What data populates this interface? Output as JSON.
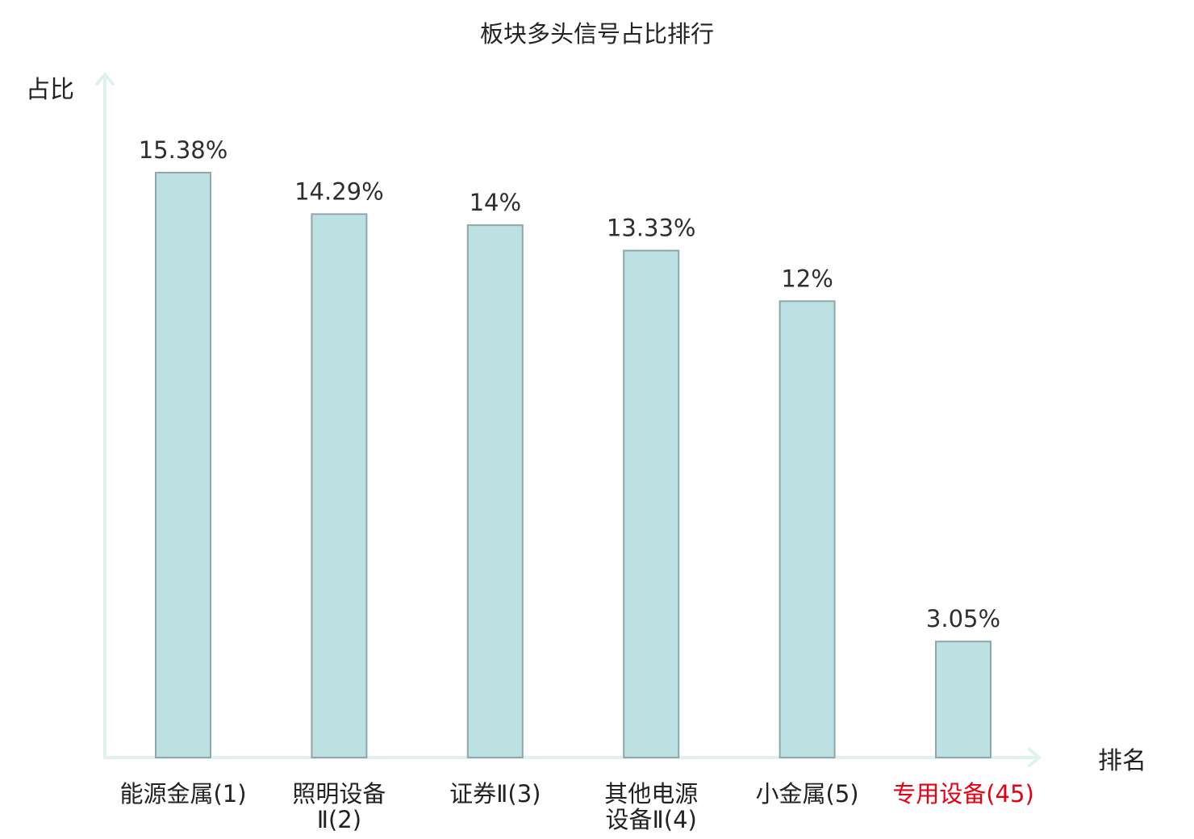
{
  "chart_data": {
    "type": "bar",
    "title": "板块多头信号占比排行",
    "xlabel": "排名",
    "ylabel": "占比",
    "categories": [
      "能源金属(1)",
      "照明设备Ⅱ(2)",
      "证券Ⅱ(3)",
      "其他电源设备Ⅱ(4)",
      "小金属(5)",
      "专用设备(45)"
    ],
    "category_lines": [
      [
        "能源金属(1)"
      ],
      [
        "照明设备",
        "Ⅱ(2)"
      ],
      [
        "证券Ⅱ(3)"
      ],
      [
        "其他电源",
        "设备Ⅱ(4)"
      ],
      [
        "小金属(5)"
      ],
      [
        "专用设备(45)"
      ]
    ],
    "values": [
      15.38,
      14.29,
      14,
      13.33,
      12,
      3.05
    ],
    "value_labels": [
      "15.38%",
      "14.29%",
      "14%",
      "13.33%",
      "12%",
      "3.05%"
    ],
    "ylim": [
      0,
      18
    ],
    "highlight_index": 5,
    "grid": false,
    "legend": "none",
    "colors": {
      "bar_fill": "#bde0e3",
      "bar_stroke": "#8fa7aa",
      "axis": "#dff2ef",
      "text": "#222222",
      "highlight_text": "#e60012"
    }
  }
}
